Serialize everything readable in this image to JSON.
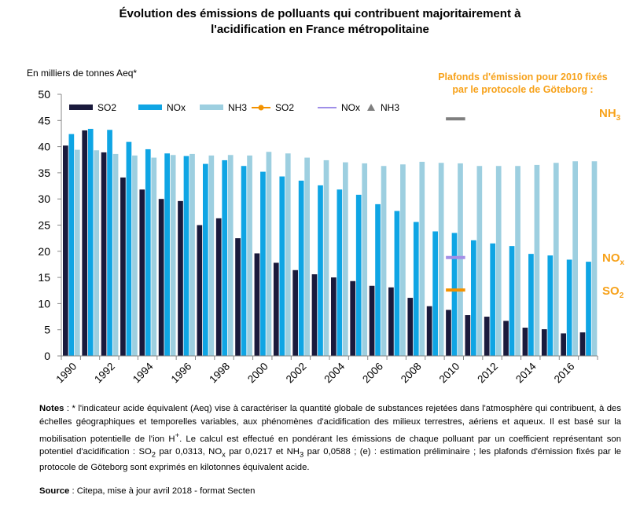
{
  "chart_data": {
    "type": "bar",
    "title_lines": [
      "Évolution des émissions de polluants qui contribuent majoritairement à",
      "l'acidification en France métropolitaine"
    ],
    "ylabel": "En milliers de tonnes Aeq*",
    "ylim": [
      0,
      50
    ],
    "yticks": [
      0,
      5,
      10,
      15,
      20,
      25,
      30,
      35,
      40,
      45,
      50
    ],
    "years": [
      1990,
      1991,
      1992,
      1993,
      1994,
      1995,
      1996,
      1997,
      1998,
      1999,
      2000,
      2001,
      2002,
      2003,
      2004,
      2005,
      2006,
      2007,
      2008,
      2009,
      2010,
      2011,
      2012,
      2013,
      2014,
      2015,
      2016,
      2017
    ],
    "xtick_labels": [
      "1990",
      "1992",
      "1994",
      "1996",
      "1998",
      "2000",
      "2002",
      "2004",
      "2006",
      "2008",
      "2010",
      "2012",
      "2014",
      "2016"
    ],
    "series": [
      {
        "name": "SO2",
        "color": "#1a1a3c",
        "values": [
          40.2,
          43.1,
          38.9,
          34.1,
          31.8,
          30.0,
          29.6,
          25.0,
          26.3,
          22.5,
          19.6,
          17.8,
          16.4,
          15.6,
          15.0,
          14.3,
          13.4,
          13.1,
          11.1,
          9.5,
          8.8,
          7.8,
          7.5,
          6.7,
          5.4,
          5.1,
          4.3,
          4.5
        ]
      },
      {
        "name": "NOx",
        "color": "#0fa5e4",
        "values": [
          42.4,
          43.4,
          43.2,
          40.9,
          39.5,
          38.7,
          38.2,
          36.7,
          37.4,
          36.3,
          35.2,
          34.3,
          33.5,
          32.6,
          31.8,
          30.8,
          29.0,
          27.7,
          25.6,
          23.8,
          23.5,
          22.1,
          21.5,
          21.0,
          19.5,
          19.2,
          18.4,
          18.0
        ]
      },
      {
        "name": "NH3",
        "color": "#9dcfe0",
        "values": [
          39.4,
          39.3,
          38.6,
          38.3,
          37.9,
          38.4,
          38.6,
          38.3,
          38.4,
          38.3,
          39.0,
          38.7,
          37.9,
          37.4,
          37.0,
          36.8,
          36.3,
          36.6,
          37.1,
          36.9,
          36.8,
          36.3,
          36.3,
          36.3,
          36.5,
          36.9,
          37.2,
          37.2
        ]
      }
    ],
    "legend": [
      {
        "label": "SO2",
        "kind": "bar",
        "color": "#1a1a3c"
      },
      {
        "label": "NOx",
        "kind": "bar",
        "color": "#0fa5e4"
      },
      {
        "label": "NH3",
        "kind": "bar",
        "color": "#9dcfe0"
      },
      {
        "label": "SO2",
        "kind": "line-marker",
        "color": "#f39200"
      },
      {
        "label": "NOx",
        "kind": "line",
        "color": "#9f8fe8"
      },
      {
        "label": "NH3",
        "kind": "triangle",
        "color": "#7f7f7f"
      }
    ],
    "ceilings": {
      "title_lines": [
        "Plafonds d'émission  pour 2010  fixés",
        "par le protocole de Göteborg :"
      ],
      "year": 2010,
      "items": [
        {
          "name": "NH3",
          "label": "NH",
          "sub": "3",
          "value": 45.3,
          "color": "#7f7f7f"
        },
        {
          "name": "NOx",
          "label": "NO",
          "sub": "x",
          "value": 18.8,
          "color": "#a48fe6"
        },
        {
          "name": "SO2",
          "label": "SO",
          "sub": "2",
          "value": 12.6,
          "color": "#f39200"
        }
      ]
    }
  },
  "notes": {
    "label": "Notes",
    "p1": " : * l'indicateur acide équivalent (Aeq) vise à caractériser la quantité globale de substances rejetées dans l'atmosphère qui contribuent, à des échelles géographiques et temporelles variables, aux phénomènes d'acidification des milieux terrestres, aériens et aqueux. Il est basé sur la mobilisation potentielle de l'ion H",
    "sup": "+",
    "p2": ". Le calcul est effectué en pondérant les émissions de chaque polluant par un coefficient représentant son potentiel d'acidification : SO",
    "s1": "2",
    "p3": " par 0,0313, NO",
    "s2": "x",
    "p4": " par 0,0217 et NH",
    "s3": "3",
    "p5": " par 0,0588 ; (e) : estimation préliminaire ; les plafonds d'émission fixés par le protocole de Göteborg sont exprimés en kilotonnes équivalent acide."
  },
  "source": {
    "label": "Source",
    "text": " : Citepa, mise à jour avril 2018 - format Secten"
  }
}
